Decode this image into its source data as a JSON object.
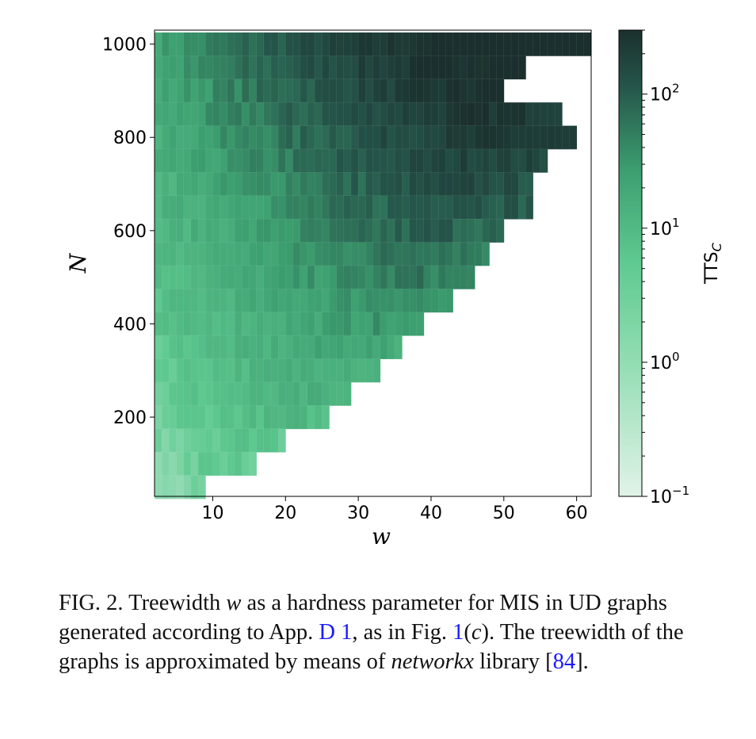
{
  "chart_data": {
    "type": "heatmap",
    "xlabel": "w",
    "ylabel": "N",
    "xlim": [
      2,
      62
    ],
    "ylim": [
      30,
      1030
    ],
    "x_ticks": [
      "10",
      "20",
      "30",
      "40",
      "50",
      "60"
    ],
    "x_tick_values": [
      10,
      20,
      30,
      40,
      50,
      60
    ],
    "y_ticks": [
      "200",
      "400",
      "600",
      "800",
      "1000"
    ],
    "y_tick_values": [
      200,
      400,
      600,
      800,
      1000
    ],
    "n_values": [
      1000,
      950,
      900,
      850,
      800,
      750,
      700,
      650,
      600,
      550,
      500,
      450,
      400,
      350,
      300,
      250,
      200,
      150,
      100,
      50
    ],
    "max_w_per_row": [
      62,
      53,
      50,
      58,
      60,
      56,
      54,
      54,
      50,
      48,
      46,
      43,
      39,
      36,
      33,
      29,
      26,
      20,
      16,
      9
    ],
    "colorbar": {
      "label": "TTS",
      "label_subscript": "C",
      "scale": "log",
      "range": [
        0.1,
        300
      ],
      "ticks": [
        {
          "base": "10",
          "exp": "2",
          "value": 100
        },
        {
          "base": "10",
          "exp": "1",
          "value": 10
        },
        {
          "base": "10",
          "exp": "0",
          "value": 1
        },
        {
          "base": "10",
          "exp": "−1",
          "value": 0.1
        }
      ],
      "colors": [
        "#e1f3e8",
        "#5fca91",
        "#3c9e6f",
        "#1f3a37"
      ]
    },
    "intensity_note": "log10 TTS_C ranges from about -0.3 (bottom-left) to about 2.4 (upper middle/right)"
  },
  "caption": {
    "prefix": "FIG. 2.  Treewidth ",
    "var_w": "w",
    "text1": " as a hardness parameter for MIS in UD graphs generated according to App. ",
    "link_app": "D 1",
    "text2": ", as in Fig. ",
    "link_fig": "1",
    "fig_paren_open": "(",
    "fig_c": "c",
    "fig_paren_close": ")",
    "text3": ".  The treewidth of the graphs is approximated by means of ",
    "italic_lib": "networkx",
    "text4": " library [",
    "link_ref": "84",
    "text5": "]."
  }
}
